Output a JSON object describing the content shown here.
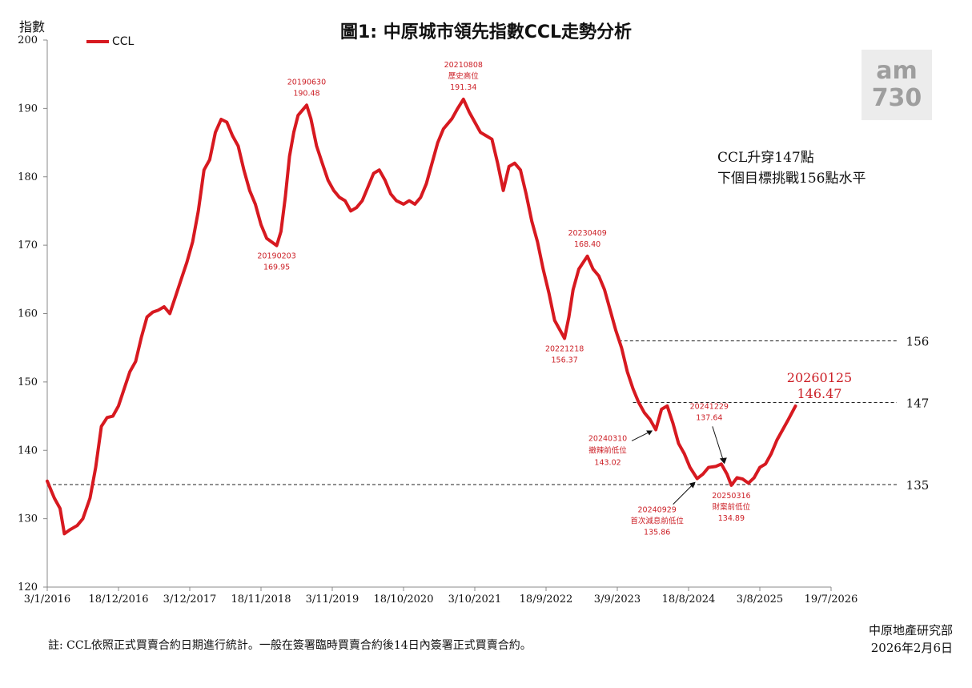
{
  "title": "圖1: 中原城市領先指數CCL走勢分析",
  "y_axis_title": "指數",
  "legend": {
    "label": "CCL",
    "color": "#d71920"
  },
  "callout": {
    "line1": "CCL升穿147點",
    "line2": "下個目標挑戰156點水平"
  },
  "watermark": {
    "line1": "am",
    "line2": "730"
  },
  "note": "註: CCL依照正式買賣合約日期進行統計。一般在簽署臨時買賣合約後14日內簽署正式買賣合約。",
  "source": {
    "org": "中原地產研究部",
    "date": "2026年2月6日"
  },
  "chart_data": {
    "type": "line",
    "title": "圖1: 中原城市領先指數CCL走勢分析",
    "ylabel": "指數",
    "xlabel": "",
    "ylim": [
      120,
      200
    ],
    "y_ticks": [
      120,
      130,
      140,
      150,
      160,
      170,
      180,
      190,
      200
    ],
    "x_ticks": [
      "3/1/2016",
      "18/12/2016",
      "3/12/2017",
      "18/11/2018",
      "3/11/2019",
      "18/10/2020",
      "3/10/2021",
      "18/9/2022",
      "3/9/2023",
      "18/8/2024",
      "3/8/2025",
      "19/7/2026"
    ],
    "x_range": [
      "2016-01-03",
      "2026-07-19"
    ],
    "legend_position": "top-left",
    "grid": false,
    "series": [
      {
        "name": "CCL",
        "color": "#d71920",
        "points": [
          [
            "2016-01-03",
            135.5
          ],
          [
            "2016-02-07",
            133.0
          ],
          [
            "2016-03-06",
            131.5
          ],
          [
            "2016-03-27",
            127.8
          ],
          [
            "2016-04-24",
            128.4
          ],
          [
            "2016-05-29",
            129.0
          ],
          [
            "2016-06-26",
            130.0
          ],
          [
            "2016-07-31",
            133.0
          ],
          [
            "2016-08-28",
            137.5
          ],
          [
            "2016-09-25",
            143.5
          ],
          [
            "2016-10-23",
            144.8
          ],
          [
            "2016-11-20",
            145.0
          ],
          [
            "2016-12-18",
            146.5
          ],
          [
            "2017-01-15",
            149.0
          ],
          [
            "2017-02-12",
            151.5
          ],
          [
            "2017-03-12",
            153.0
          ],
          [
            "2017-04-09",
            156.5
          ],
          [
            "2017-05-07",
            159.5
          ],
          [
            "2017-06-04",
            160.2
          ],
          [
            "2017-07-02",
            160.5
          ],
          [
            "2017-07-30",
            161.0
          ],
          [
            "2017-08-27",
            160.0
          ],
          [
            "2017-09-24",
            162.5
          ],
          [
            "2017-10-22",
            165.0
          ],
          [
            "2017-11-19",
            167.5
          ],
          [
            "2017-12-17",
            170.5
          ],
          [
            "2018-01-14",
            175.0
          ],
          [
            "2018-02-11",
            181.0
          ],
          [
            "2018-03-11",
            182.5
          ],
          [
            "2018-04-08",
            186.5
          ],
          [
            "2018-05-06",
            188.4
          ],
          [
            "2018-06-03",
            188.0
          ],
          [
            "2018-07-01",
            186.0
          ],
          [
            "2018-07-29",
            184.5
          ],
          [
            "2018-08-26",
            181.0
          ],
          [
            "2018-09-23",
            178.0
          ],
          [
            "2018-10-21",
            176.0
          ],
          [
            "2018-11-18",
            173.0
          ],
          [
            "2018-12-16",
            171.0
          ],
          [
            "2019-02-03",
            169.95
          ],
          [
            "2019-02-24",
            172.0
          ],
          [
            "2019-03-17",
            177.0
          ],
          [
            "2019-04-07",
            183.0
          ],
          [
            "2019-04-28",
            186.5
          ],
          [
            "2019-05-19",
            189.0
          ],
          [
            "2019-06-30",
            190.48
          ],
          [
            "2019-07-21",
            188.5
          ],
          [
            "2019-08-18",
            184.5
          ],
          [
            "2019-09-15",
            182.0
          ],
          [
            "2019-10-13",
            179.5
          ],
          [
            "2019-11-10",
            178.0
          ],
          [
            "2019-12-08",
            177.0
          ],
          [
            "2020-01-05",
            176.5
          ],
          [
            "2020-02-02",
            175.0
          ],
          [
            "2020-03-01",
            175.5
          ],
          [
            "2020-03-29",
            176.5
          ],
          [
            "2020-04-26",
            178.5
          ],
          [
            "2020-05-24",
            180.5
          ],
          [
            "2020-06-21",
            181.0
          ],
          [
            "2020-07-19",
            179.5
          ],
          [
            "2020-08-16",
            177.5
          ],
          [
            "2020-09-13",
            176.5
          ],
          [
            "2020-10-18",
            176.0
          ],
          [
            "2020-11-15",
            176.5
          ],
          [
            "2020-12-13",
            176.0
          ],
          [
            "2021-01-10",
            177.0
          ],
          [
            "2021-02-07",
            179.0
          ],
          [
            "2021-03-07",
            182.0
          ],
          [
            "2021-04-04",
            185.0
          ],
          [
            "2021-05-02",
            187.0
          ],
          [
            "2021-06-13",
            188.5
          ],
          [
            "2021-07-11",
            190.0
          ],
          [
            "2021-08-08",
            191.34
          ],
          [
            "2021-09-05",
            189.5
          ],
          [
            "2021-10-03",
            188.0
          ],
          [
            "2021-10-31",
            186.5
          ],
          [
            "2021-11-28",
            186.0
          ],
          [
            "2021-12-26",
            185.5
          ],
          [
            "2022-01-23",
            182.0
          ],
          [
            "2022-02-20",
            178.0
          ],
          [
            "2022-03-20",
            181.5
          ],
          [
            "2022-04-17",
            182.0
          ],
          [
            "2022-05-15",
            181.0
          ],
          [
            "2022-06-12",
            177.5
          ],
          [
            "2022-07-10",
            173.5
          ],
          [
            "2022-08-07",
            170.5
          ],
          [
            "2022-09-04",
            166.5
          ],
          [
            "2022-10-02",
            163.0
          ],
          [
            "2022-10-30",
            159.0
          ],
          [
            "2022-12-18",
            156.37
          ],
          [
            "2023-01-08",
            159.5
          ],
          [
            "2023-01-29",
            163.5
          ],
          [
            "2023-02-26",
            166.5
          ],
          [
            "2023-04-09",
            168.4
          ],
          [
            "2023-05-07",
            166.5
          ],
          [
            "2023-06-04",
            165.5
          ],
          [
            "2023-07-02",
            163.5
          ],
          [
            "2023-07-30",
            160.5
          ],
          [
            "2023-08-27",
            157.5
          ],
          [
            "2023-09-24",
            155.0
          ],
          [
            "2023-10-22",
            151.5
          ],
          [
            "2023-11-19",
            149.0
          ],
          [
            "2023-12-17",
            147.0
          ],
          [
            "2024-01-14",
            145.5
          ],
          [
            "2024-02-11",
            144.5
          ],
          [
            "2024-03-10",
            143.02
          ],
          [
            "2024-04-07",
            146.0
          ],
          [
            "2024-05-05",
            146.5
          ],
          [
            "2024-06-02",
            144.0
          ],
          [
            "2024-06-30",
            141.0
          ],
          [
            "2024-07-28",
            139.5
          ],
          [
            "2024-08-25",
            137.5
          ],
          [
            "2024-09-29",
            135.86
          ],
          [
            "2024-10-27",
            136.5
          ],
          [
            "2024-11-24",
            137.5
          ],
          [
            "2024-12-29",
            137.64
          ],
          [
            "2025-01-26",
            138.0
          ],
          [
            "2025-02-23",
            136.5
          ],
          [
            "2025-03-16",
            134.89
          ],
          [
            "2025-04-13",
            136.0
          ],
          [
            "2025-05-11",
            135.8
          ],
          [
            "2025-06-08",
            135.2
          ],
          [
            "2025-07-06",
            136.0
          ],
          [
            "2025-08-03",
            137.5
          ],
          [
            "2025-08-31",
            138.0
          ],
          [
            "2025-09-28",
            139.5
          ],
          [
            "2025-10-26",
            141.5
          ],
          [
            "2025-11-23",
            143.0
          ],
          [
            "2025-12-21",
            144.5
          ],
          [
            "2026-01-25",
            146.47
          ]
        ]
      }
    ],
    "reference_lines": [
      {
        "value": 156,
        "label": "156",
        "start": "2023-09-10"
      },
      {
        "value": 147,
        "label": "147",
        "start": "2023-11-19"
      },
      {
        "value": 135,
        "label": "135",
        "start": "2016-01-03"
      }
    ],
    "annotations": [
      {
        "date": "2019-02-03",
        "value": 169.95,
        "lines": [
          "20190203",
          "169.95"
        ],
        "placement": "below"
      },
      {
        "date": "2019-06-30",
        "value": 190.48,
        "lines": [
          "20190630",
          "190.48"
        ],
        "placement": "above"
      },
      {
        "date": "2021-08-08",
        "value": 191.34,
        "lines": [
          "20210808",
          "歷史高位",
          "191.34"
        ],
        "placement": "above"
      },
      {
        "date": "2022-12-18",
        "value": 156.37,
        "lines": [
          "20221218",
          "156.37"
        ],
        "placement": "below"
      },
      {
        "date": "2023-04-09",
        "value": 168.4,
        "lines": [
          "20230409",
          "168.40"
        ],
        "placement": "above"
      },
      {
        "date": "2024-03-10",
        "value": 143.02,
        "lines": [
          "20240310",
          "撤辣前低位",
          "143.02"
        ],
        "placement": "left-arrow"
      },
      {
        "date": "2024-09-29",
        "value": 135.86,
        "lines": [
          "20240929",
          "首次減息前低位",
          "135.86"
        ],
        "placement": "below-arrow"
      },
      {
        "date": "2024-12-29",
        "value": 137.64,
        "lines": [
          "20241229",
          "137.64"
        ],
        "placement": "above-arrow"
      },
      {
        "date": "2025-03-16",
        "value": 134.89,
        "lines": [
          "20250316",
          "財案前低位",
          "134.89"
        ],
        "placement": "below"
      },
      {
        "date": "2026-01-25",
        "value": 146.47,
        "lines": [
          "20260125",
          "146.47"
        ],
        "placement": "above-large"
      }
    ]
  }
}
